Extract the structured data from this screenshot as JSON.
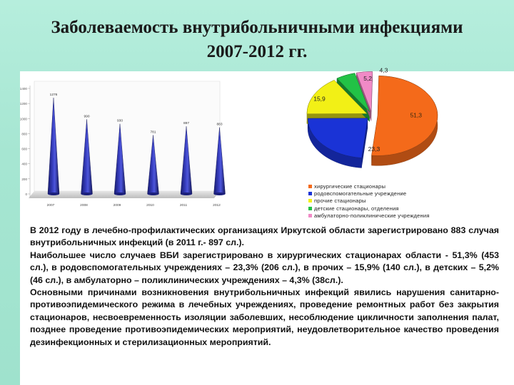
{
  "title": {
    "line1": "Заболеваемость внутрибольничными инфекциями",
    "line2": "2007-2012 гг."
  },
  "chart_data": [
    {
      "type": "bar",
      "categories": [
        "2007",
        "2008",
        "2009",
        "2010",
        "2011",
        "2012"
      ],
      "values": [
        1276,
        990,
        930,
        781,
        897,
        883
      ],
      "data_labels": [
        "1276",
        "990",
        "930",
        "781",
        "897",
        "883"
      ],
      "y_ticks": [
        "0",
        "200",
        "400",
        "600",
        "800",
        "1000",
        "1200",
        "1400"
      ],
      "ylim": [
        0,
        1400
      ],
      "bar_color": "#2a2f9e",
      "grid": false
    },
    {
      "type": "pie",
      "labels": [
        "хирургические стационары",
        "родовспомогательные учреждение",
        "прочие стационары",
        "детские стационары, отделения",
        "амбулаторно-поликлинические учреждения"
      ],
      "values": [
        51.3,
        23.3,
        15.9,
        5.2,
        4.3
      ],
      "data_labels": [
        "51,3",
        "23,3",
        "15,9",
        "5,2",
        "4,3"
      ],
      "colors": [
        "#f46a1a",
        "#1a33d6",
        "#f2f016",
        "#22c246",
        "#f08ac6"
      ],
      "legend_position": "bottom-right"
    }
  ],
  "body": {
    "p1": "В 2012 году в лечебно-профилактических организациях Иркутской области зарегистрировано 883 случая внутрибольничных инфекций (в 2011 г.- 897 сл.).",
    "p2": "Наибольшее число случаев ВБИ зарегистрировано в хирургических стационарах области - 51,3% (453 сл.), в родовспомогательных учреждениях – 23,3% (206 сл.), в прочих – 15,9% (140 сл.), в детских – 5,2% (46 сл.), в амбулаторно – поликлинических учреждениях – 4,3% (38сл.).",
    "p3": "Основными причинами возникновения внутрибольничных инфекций явились нарушения санитарно-противоэпидемического режима в лечебных учреждениях, проведение ремонтных работ без закрытия стационаров, несвоевременность изоляции заболевших, несоблюдение цикличности заполнения палат, позднее проведение противоэпидемических мероприятий, неудовлетворительное качество проведения дезинфекционных и стерилизационных мероприятий."
  }
}
